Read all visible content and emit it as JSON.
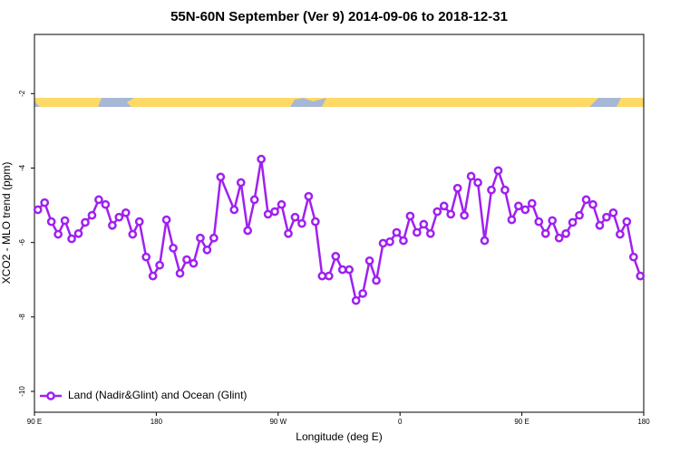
{
  "chart_data": {
    "type": "line",
    "title": "55N-60N September (Ver 9)   2014-09-06 to 2018-12-31",
    "x_label": "Longitude (deg E)",
    "y_label": "XCO2 - MLO trend (ppm)",
    "x": [
      92.5,
      97.5,
      102.5,
      107.5,
      112.5,
      117.5,
      122.5,
      127.5,
      132.5,
      137.5,
      142.5,
      147.5,
      152.5,
      157.5,
      162.5,
      167.5,
      172.5,
      177.5,
      182.5,
      187.5,
      192.5,
      197.5,
      202.5,
      207.5,
      212.5,
      217.5,
      222.5,
      227.5,
      237.5,
      242.5,
      247.5,
      252.5,
      257.5,
      262.5,
      267.5,
      272.5,
      277.5,
      282.5,
      287.5,
      292.5,
      297.5,
      302.5,
      307.5,
      312.5,
      317.5,
      322.5,
      327.5,
      332.5,
      337.5,
      342.5,
      347.5,
      352.5,
      357.5,
      362.5,
      367.5,
      372.5,
      377.5,
      382.5,
      387.5,
      392.5,
      397.5,
      402.5,
      407.5,
      412.5,
      417.5,
      422.5,
      427.5,
      432.5,
      437.5,
      442.5,
      447.5,
      452.5,
      457.5,
      462.5,
      467.5,
      472.5,
      477.5,
      482.5,
      487.5,
      492.5,
      497.5,
      502.5,
      507.5,
      512.5,
      517.5,
      522.5,
      527.5,
      532.5,
      537.5
    ],
    "series": [
      {
        "name": "Land (Nadir&Glint) and Ocean (Glint)",
        "color": "#a020f0",
        "values": [
          -5.12,
          -4.93,
          -5.44,
          -5.78,
          -5.41,
          -5.9,
          -5.76,
          -5.46,
          -5.27,
          -4.85,
          -4.98,
          -5.54,
          -5.32,
          -5.2,
          -5.78,
          -5.44,
          -6.39,
          -6.9,
          -6.61,
          -5.39,
          -6.15,
          -6.83,
          -6.46,
          -6.56,
          -5.88,
          -6.2,
          -5.88,
          -4.24,
          -5.12,
          -4.39,
          -5.68,
          -4.85,
          -3.76,
          -5.24,
          -5.17,
          -4.98,
          -5.76,
          -5.32,
          -5.49,
          -4.76,
          -5.44,
          -6.9,
          -6.9,
          -6.37,
          -6.73,
          -6.73,
          -7.56,
          -7.37,
          -6.49,
          -7.02,
          -6.02,
          -5.98,
          -5.73,
          -5.95,
          -5.29,
          -5.73,
          -5.51,
          -5.76,
          -5.17,
          -5.02,
          -5.24,
          -4.54,
          -5.27,
          -4.22,
          -4.39,
          -5.95,
          -4.59,
          -4.07,
          -4.59,
          -5.39,
          -5.02,
          -5.12,
          -4.95,
          -5.44,
          -5.76,
          -5.41,
          -5.88,
          -5.76,
          -5.46,
          -5.27,
          -4.85,
          -4.98,
          -5.54,
          -5.32,
          -5.2,
          -5.78,
          -5.44,
          -6.39,
          -6.9
        ]
      }
    ],
    "xlim": [
      90,
      540
    ],
    "xticks": [
      {
        "value": 90,
        "label": "90 E"
      },
      {
        "value": 180,
        "label": "180"
      },
      {
        "value": 270,
        "label": "90 W"
      },
      {
        "value": 360,
        "label": "0"
      },
      {
        "value": 450,
        "label": "90 E"
      },
      {
        "value": 540,
        "label": "180"
      }
    ],
    "ylim": [
      -10.56,
      -0.41
    ],
    "yticks": [
      -2,
      -4,
      -6,
      -8,
      -10
    ],
    "legend": "bottom-left"
  }
}
